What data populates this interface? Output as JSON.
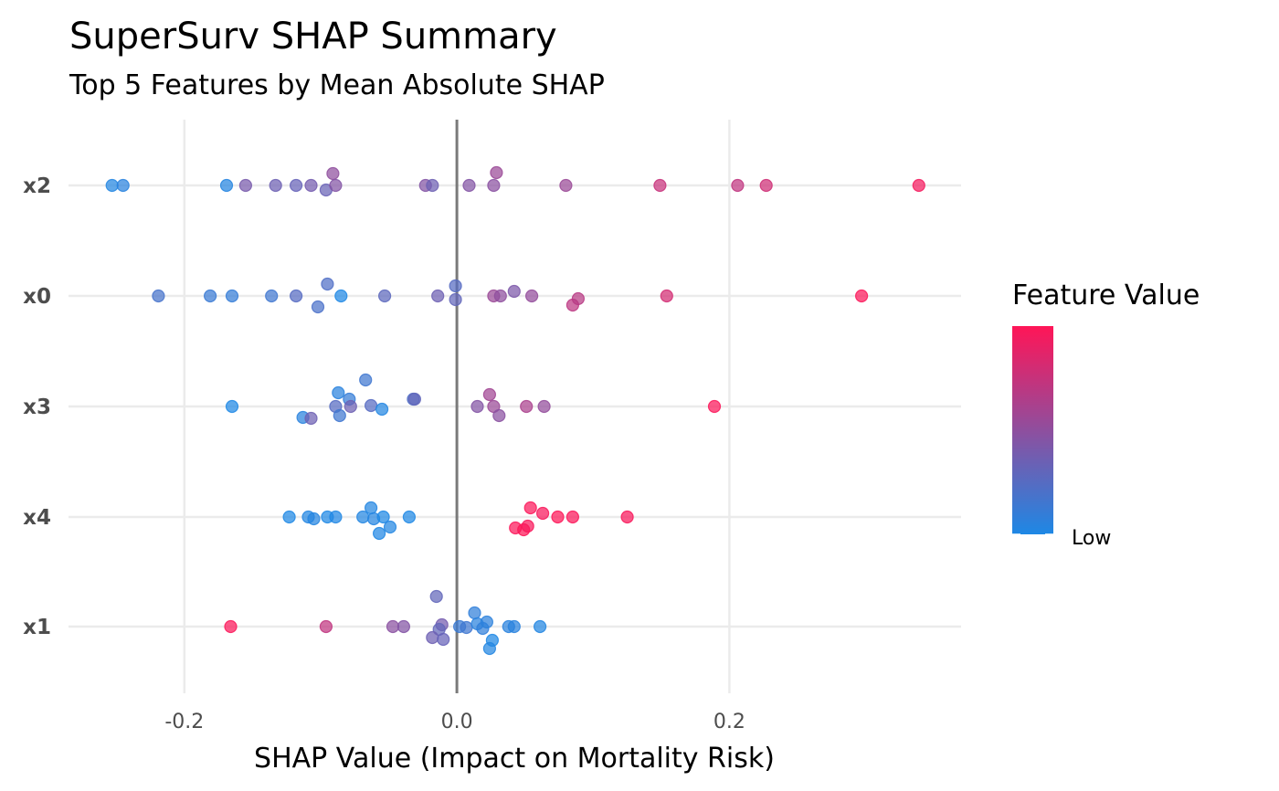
{
  "chart_data": {
    "type": "scatter",
    "title": "SuperSurv SHAP Summary",
    "subtitle": "Top 5 Features by Mean Absolute SHAP",
    "xlabel": "SHAP Value (Impact on Mortality Risk)",
    "ylabel": "",
    "xlim": [
      -0.285,
      0.37
    ],
    "x_ticks": [
      -0.2,
      0.0,
      0.2
    ],
    "x_tick_labels": [
      "-0.2",
      "0.0",
      "0.2"
    ],
    "reference_line_x": 0.0,
    "grid": true,
    "categories": [
      "x2",
      "x0",
      "x3",
      "x4",
      "x1"
    ],
    "color_scale": {
      "title": "Feature Value",
      "low_label": "Low",
      "low_color": "#1e88e5",
      "high_color": "#ff1557",
      "legend_position": "right"
    },
    "series": [
      {
        "name": "x2",
        "shap": [
          -0.253,
          -0.245,
          -0.169,
          -0.155,
          -0.133,
          -0.118,
          -0.107,
          -0.091,
          -0.096,
          -0.089,
          -0.023,
          -0.018,
          0.009,
          0.027,
          0.029,
          0.08,
          0.149,
          0.206,
          0.227,
          0.339
        ],
        "feature_value": [
          0.02,
          0.05,
          0.03,
          0.4,
          0.35,
          0.32,
          0.38,
          0.5,
          0.33,
          0.45,
          0.45,
          0.35,
          0.45,
          0.48,
          0.55,
          0.55,
          0.75,
          0.72,
          0.78,
          0.95
        ]
      },
      {
        "name": "x0",
        "shap": [
          -0.219,
          -0.181,
          -0.165,
          -0.136,
          -0.118,
          -0.095,
          -0.102,
          -0.085,
          -0.053,
          -0.014,
          -0.001,
          -0.001,
          0.027,
          0.032,
          0.042,
          0.055,
          0.085,
          0.089,
          0.154,
          0.297
        ],
        "feature_value": [
          0.18,
          0.12,
          0.1,
          0.15,
          0.25,
          0.22,
          0.2,
          0.0,
          0.28,
          0.35,
          0.25,
          0.3,
          0.55,
          0.5,
          0.42,
          0.52,
          0.7,
          0.68,
          0.8,
          0.98
        ]
      },
      {
        "name": "x3",
        "shap": [
          -0.165,
          -0.113,
          -0.107,
          -0.089,
          -0.087,
          -0.086,
          -0.079,
          -0.078,
          -0.067,
          -0.063,
          -0.055,
          -0.032,
          -0.031,
          0.015,
          0.024,
          0.027,
          0.031,
          0.051,
          0.064,
          0.189
        ],
        "feature_value": [
          0.0,
          0.05,
          0.35,
          0.25,
          0.05,
          0.15,
          0.1,
          0.35,
          0.15,
          0.25,
          0.02,
          0.22,
          0.3,
          0.45,
          0.58,
          0.55,
          0.48,
          0.62,
          0.52,
          0.98
        ]
      },
      {
        "name": "x4",
        "shap": [
          -0.123,
          -0.109,
          -0.105,
          -0.095,
          -0.089,
          -0.069,
          -0.063,
          -0.061,
          -0.054,
          -0.049,
          -0.057,
          -0.035,
          0.043,
          0.049,
          0.052,
          0.054,
          0.063,
          0.074,
          0.085,
          0.125
        ],
        "feature_value": [
          0.0,
          0.02,
          0.03,
          0.0,
          0.01,
          0.02,
          0.02,
          0.03,
          0.0,
          0.02,
          0.01,
          0.0,
          0.98,
          0.99,
          0.97,
          0.98,
          0.97,
          0.99,
          0.98,
          0.97
        ]
      },
      {
        "name": "x1",
        "shap": [
          -0.166,
          -0.096,
          -0.047,
          -0.039,
          -0.015,
          -0.011,
          -0.013,
          -0.018,
          -0.01,
          0.002,
          0.007,
          0.013,
          0.015,
          0.019,
          0.026,
          0.022,
          0.024,
          0.038,
          0.042,
          0.061
        ],
        "feature_value": [
          0.98,
          0.72,
          0.48,
          0.45,
          0.3,
          0.38,
          0.3,
          0.35,
          0.32,
          0.12,
          0.15,
          0.08,
          0.05,
          0.08,
          0.0,
          0.06,
          0.02,
          0.05,
          0.05,
          0.02
        ]
      }
    ]
  }
}
